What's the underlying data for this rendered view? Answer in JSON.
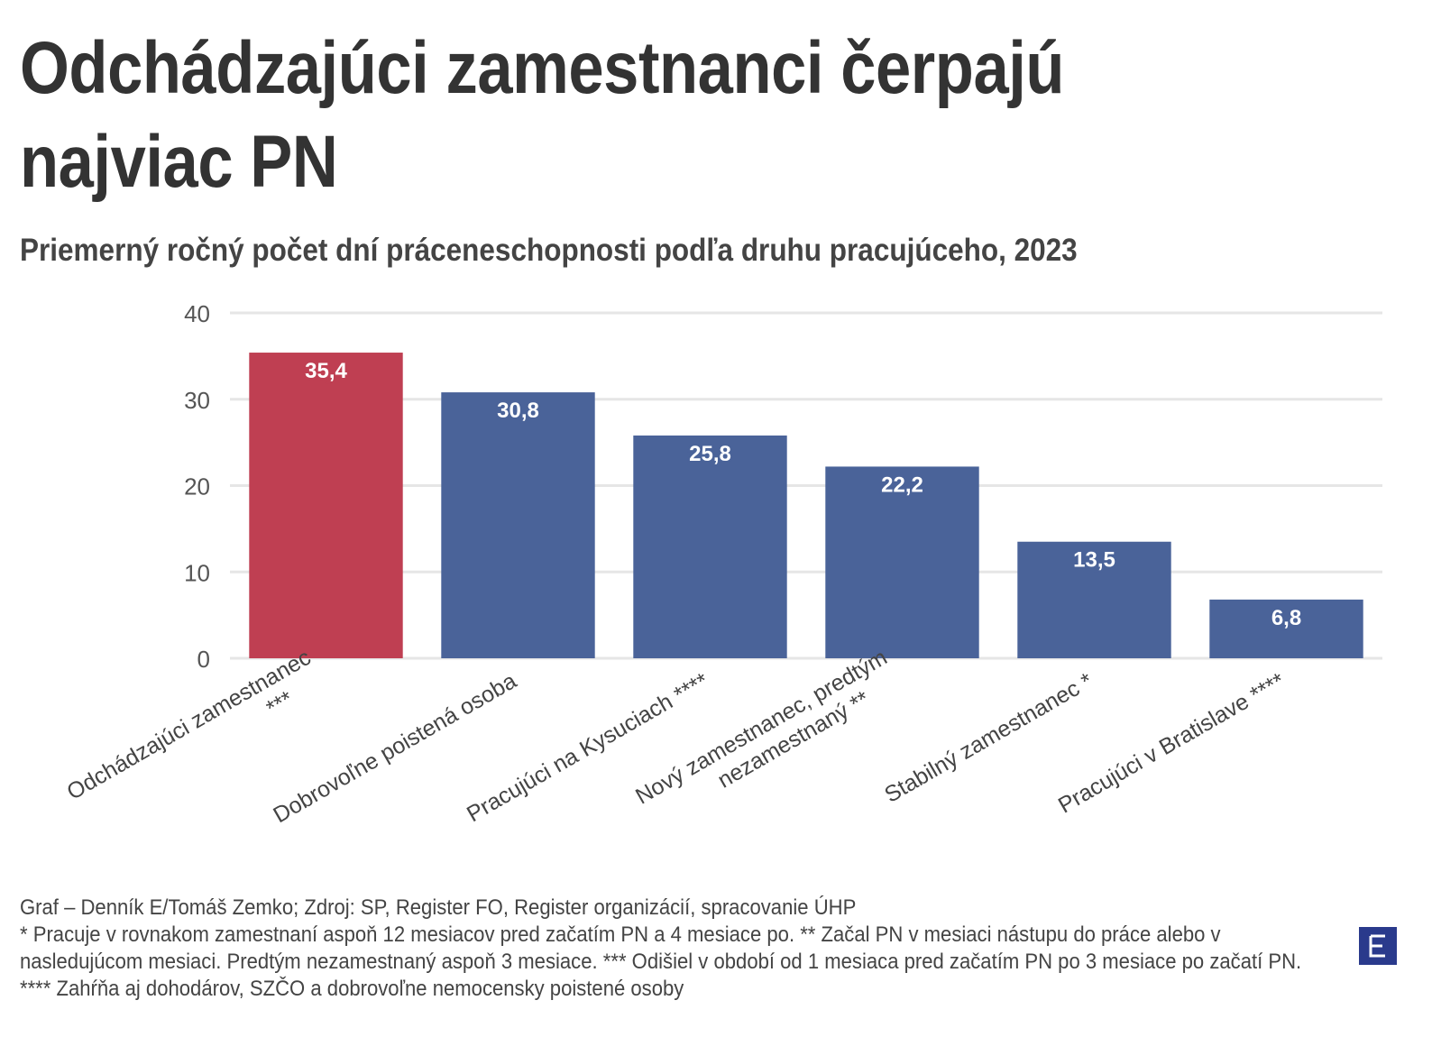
{
  "chart_data": {
    "type": "bar",
    "title": "Odchádzajúci zamestnanci čerpajú najviac PN",
    "subtitle": "Priemerný ročný počet dní práceneschopnosti podľa druhu pracujúceho, 2023",
    "categories": [
      [
        "Odchádzajúci zamestnanec",
        "***"
      ],
      [
        "Dobrovoľne poistená osoba"
      ],
      [
        "Pracujúci na Kysuciach ****"
      ],
      [
        "Nový zamestnanec, predtým",
        "nezamestnaný **"
      ],
      [
        "Stabilný zamestnanec *"
      ],
      [
        "Pracujúci v Bratislave ****"
      ]
    ],
    "values": [
      35.4,
      30.8,
      25.8,
      22.2,
      13.5,
      6.8
    ],
    "value_labels": [
      "35,4",
      "30,8",
      "25,8",
      "22,2",
      "13,5",
      "6,8"
    ],
    "highlight_index": 0,
    "colors": {
      "highlight": "#bf3f52",
      "default": "#4a6399"
    },
    "yticks": [
      0,
      10,
      20,
      30,
      40
    ],
    "ylim": [
      0,
      40
    ],
    "xlabel": "",
    "ylabel": "",
    "grid": true
  },
  "footer": {
    "source": "Graf – Denník E/Tomáš Zemko; Zdroj: SP, Register FO, Register organizácií, spracovanie ÚHP",
    "notes": "* Pracuje v rovnakom zamestnaní aspoň 12 mesiacov pred začatím PN a 4 mesiace po. ** Začal PN v mesiaci nástupu do práce alebo v nasledujúcom mesiaci. Predtým nezamestnaný aspoň 3 mesiace. *** Odišiel v období od 1 mesiaca pred začatím PN po 3 mesiace po začatí PN. **** Zahŕňa aj dohodárov, SZČO a dobrovoľne nemocensky poistené osoby"
  },
  "logo": {
    "letter": "E",
    "color": "#2a3a8c"
  }
}
